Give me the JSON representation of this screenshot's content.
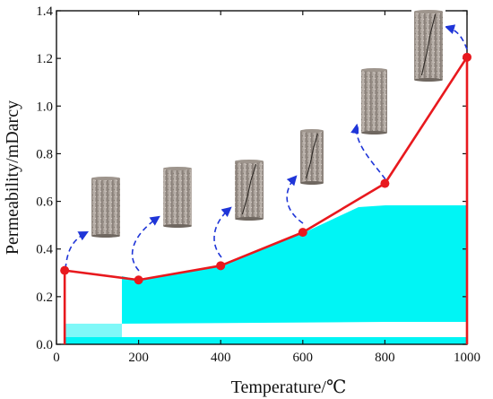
{
  "chart_data": {
    "type": "line",
    "title": "",
    "xlabel": "Temperature/℃",
    "ylabel": "Permeability/mDarcy",
    "xlim": [
      0,
      1000
    ],
    "ylim": [
      0,
      1.4
    ],
    "x_ticks": [
      {
        "value": 0,
        "label": "0"
      },
      {
        "value": 200,
        "label": "200"
      },
      {
        "value": 400,
        "label": "400"
      },
      {
        "value": 600,
        "label": "600"
      },
      {
        "value": 800,
        "label": "800"
      },
      {
        "value": 1000,
        "label": "1000"
      }
    ],
    "y_ticks": [
      {
        "value": 0,
        "label": "0.0"
      },
      {
        "value": 0.2,
        "label": "0.2"
      },
      {
        "value": 0.4,
        "label": "0.4"
      },
      {
        "value": 0.6,
        "label": "0.6"
      },
      {
        "value": 0.8,
        "label": "0.8"
      },
      {
        "value": 1.0,
        "label": "1.0"
      },
      {
        "value": 1.2,
        "label": "1.2"
      },
      {
        "value": 1.4,
        "label": "1.4"
      }
    ],
    "grid": false,
    "legend": "none",
    "series": [
      {
        "color": "#e8191e",
        "points": [
          {
            "x": 20,
            "y": 0.31
          },
          {
            "x": 200,
            "y": 0.27
          },
          {
            "x": 400,
            "y": 0.33
          },
          {
            "x": 600,
            "y": 0.47
          },
          {
            "x": 800,
            "y": 0.675
          },
          {
            "x": 1000,
            "y": 1.205
          }
        ]
      }
    ],
    "curve_start_y": 0,
    "curve_end_y": 0,
    "background_bands_color": "#00f5f5",
    "arrow_color": "#1f35d8",
    "specimen_photos": [
      {
        "temperature": 20,
        "label": "",
        "crack": false
      },
      {
        "temperature": 200,
        "label": "",
        "crack": false
      },
      {
        "temperature": 400,
        "label": "",
        "crack": true
      },
      {
        "temperature": 600,
        "label": "",
        "crack": true
      },
      {
        "temperature": 800,
        "label": "",
        "crack": false
      },
      {
        "temperature": 1000,
        "label": "",
        "crack": true
      }
    ]
  }
}
